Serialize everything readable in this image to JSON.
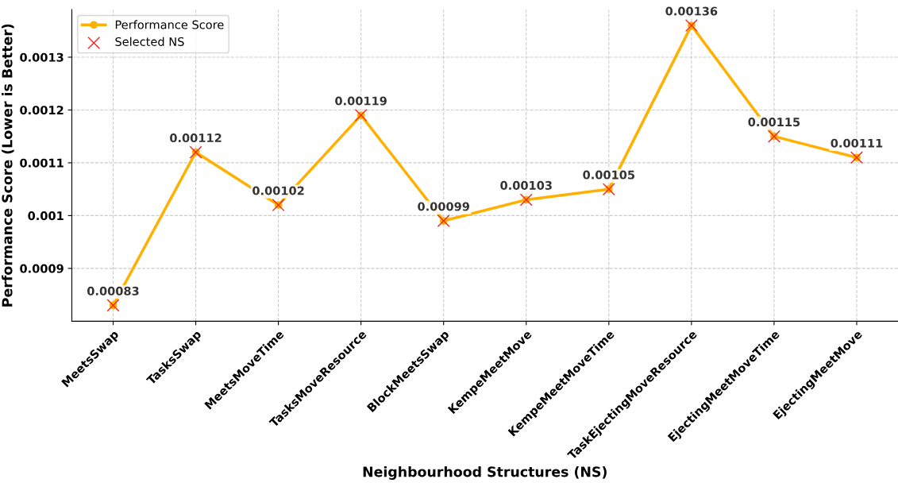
{
  "chart_data": {
    "type": "line",
    "xlabel": "Neighbourhood Structures (NS)",
    "ylabel": "Performance Score (Lower is Better)",
    "categories": [
      "MeetsSwap",
      "TasksSwap",
      "MeetsMoveTime",
      "TasksMoveResource",
      "BlockMeetsSwap",
      "KempeMeetMove",
      "KempeMeetMoveTime",
      "TaskEjectingMoveResource",
      "EjectingMeetMoveTime",
      "EjectingMeetMove"
    ],
    "series": [
      {
        "name": "Performance Score",
        "color": "#ffb000",
        "marker": "circle",
        "values": [
          0.00083,
          0.00112,
          0.00102,
          0.00119,
          0.00099,
          0.00103,
          0.00105,
          0.00136,
          0.00115,
          0.00111
        ],
        "value_labels": [
          "0.00083",
          "0.00112",
          "0.00102",
          "0.00119",
          "0.00099",
          "0.00103",
          "0.00105",
          "0.00136",
          "0.00115",
          "0.00111"
        ]
      },
      {
        "name": "Selected NS",
        "type": "scatter",
        "color": "#ff2020",
        "marker": "cross",
        "values": [
          0.00083,
          0.00112,
          0.00102,
          0.00119,
          0.00099,
          0.00103,
          0.00105,
          0.00136,
          0.00115,
          0.00111
        ]
      }
    ],
    "ylim": [
      0.0008,
      0.00139
    ],
    "yticks": [
      0.0009,
      0.001,
      0.0011,
      0.0012,
      0.0013
    ],
    "grid": true,
    "legend": "top left",
    "line_style": "solid"
  }
}
